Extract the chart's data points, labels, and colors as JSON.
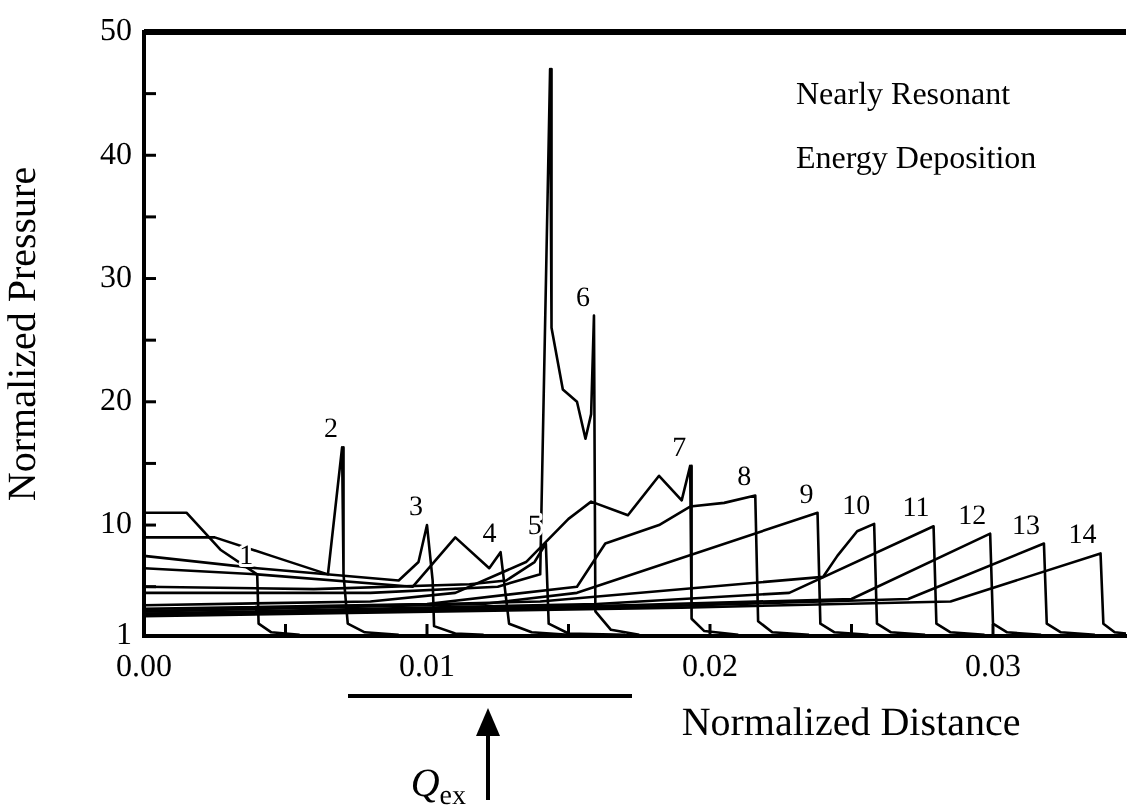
{
  "chart_data": {
    "type": "line",
    "xlabel": "Normalized Distance",
    "ylabel": "Normalized Pressure",
    "xlim": [
      0,
      0.0347
    ],
    "ylim": [
      1,
      50
    ],
    "xticks": [
      {
        "value": 0,
        "label": "0.00"
      },
      {
        "value": 0.005,
        "label": null
      },
      0.01,
      {
        "value": 0.015,
        "label": null
      },
      0.02,
      {
        "value": 0.025,
        "label": null
      },
      0.03
    ],
    "yticks": [
      1,
      {
        "value": 5,
        "label": null
      },
      10,
      {
        "value": 15,
        "label": null
      },
      20,
      {
        "value": 25,
        "label": null
      },
      30,
      {
        "value": 35,
        "label": null
      },
      40,
      {
        "value": 45,
        "label": null
      },
      50
    ],
    "grid": false,
    "legend": false,
    "marker": "none",
    "line_style": "solid",
    "series": [
      {
        "name": "1",
        "color": "#000000",
        "x": [
          0,
          0.0015,
          0.0027,
          0.004,
          0.00405,
          0.0045,
          0.0055
        ],
        "values": [
          11,
          11,
          8,
          6,
          2,
          1.3,
          1.1
        ]
      },
      {
        "name": "2",
        "color": "#000000",
        "x": [
          0,
          0.0025,
          0.0045,
          0.0065,
          0.007,
          0.00705,
          0.0072,
          0.0078,
          0.009
        ],
        "values": [
          9,
          9,
          7.5,
          6,
          16.3,
          6,
          2,
          1.3,
          1.1
        ]
      },
      {
        "name": "3",
        "color": "#000000",
        "x": [
          0,
          0.004,
          0.009,
          0.0097,
          0.01,
          0.0102,
          0.01025,
          0.011,
          0.012
        ],
        "values": [
          7.5,
          6.5,
          5.5,
          7,
          10,
          5.5,
          1.8,
          1.2,
          1.1
        ]
      },
      {
        "name": "4",
        "color": "#000000",
        "x": [
          0,
          0.004,
          0.0095,
          0.011,
          0.0122,
          0.0126,
          0.0129,
          0.0137,
          0.015
        ],
        "values": [
          6.5,
          6,
          5,
          9,
          6.5,
          7.8,
          2,
          1.3,
          1.1
        ]
      },
      {
        "name": "5",
        "color": "#000000",
        "x": [
          0,
          0.006,
          0.0115,
          0.0128,
          0.0138,
          0.0142,
          0.0143,
          0.015,
          0.017
        ],
        "values": [
          5,
          4.8,
          5.2,
          5.5,
          7,
          8.5,
          2,
          1.2,
          1.1
        ]
      },
      {
        "name": "6",
        "color": "#000000",
        "x": [
          0,
          0.008,
          0.0125,
          0.014,
          0.01435,
          0.0144,
          0.0148,
          0.0153,
          0.0156,
          0.0158,
          0.0159,
          0.01595,
          0.0165,
          0.0175
        ],
        "values": [
          4.5,
          4.5,
          5,
          6,
          47,
          26,
          21,
          20,
          17,
          19,
          27,
          3,
          1.5,
          1.1
        ]
      },
      {
        "name": "7",
        "color": "#000000",
        "x": [
          0,
          0.008,
          0.011,
          0.0135,
          0.015,
          0.0158,
          0.0171,
          0.0182,
          0.019,
          0.0193,
          0.01935,
          0.0198,
          0.021
        ],
        "values": [
          3.5,
          3.8,
          4.5,
          7,
          10.5,
          11.9,
          10.8,
          14,
          12,
          14.8,
          2.4,
          1.4,
          1.1
        ]
      },
      {
        "name": "8",
        "color": "#000000",
        "x": [
          0,
          0.01,
          0.0153,
          0.0163,
          0.0182,
          0.0193,
          0.0205,
          0.0216,
          0.0217,
          0.0222,
          0.0235
        ],
        "values": [
          3.2,
          3.6,
          5,
          8.5,
          10,
          11.5,
          11.8,
          12.4,
          2.2,
          1.3,
          1.1
        ]
      },
      {
        "name": "9",
        "color": "#000000",
        "x": [
          0,
          0.012,
          0.0153,
          0.0238,
          0.0239,
          0.0244,
          0.0256
        ],
        "values": [
          3,
          3.6,
          4.5,
          11,
          2,
          1.3,
          1.1
        ]
      },
      {
        "name": "10",
        "color": "#000000",
        "x": [
          0,
          0.014,
          0.024,
          0.0245,
          0.0252,
          0.0258,
          0.0259,
          0.0264,
          0.0276
        ],
        "values": [
          3,
          3.8,
          5.8,
          7.5,
          9.5,
          10.1,
          2,
          1.3,
          1.1
        ]
      },
      {
        "name": "11",
        "color": "#000000",
        "x": [
          0,
          0.016,
          0.0228,
          0.0279,
          0.028,
          0.0285,
          0.0297
        ],
        "values": [
          2.8,
          3.6,
          4.5,
          9.9,
          2,
          1.3,
          1.1
        ]
      },
      {
        "name": "12",
        "color": "#000000",
        "x": [
          0,
          0.017,
          0.025,
          0.0299,
          0.03,
          0.0305,
          0.0317
        ],
        "values": [
          2.8,
          3.5,
          4,
          9.3,
          2,
          1.3,
          1.1
        ]
      },
      {
        "name": "13",
        "color": "#000000",
        "x": [
          0,
          0.018,
          0.027,
          0.0318,
          0.0319,
          0.0324,
          0.0336
        ],
        "values": [
          2.7,
          3.4,
          4,
          8.5,
          2,
          1.3,
          1.1
        ]
      },
      {
        "name": "14",
        "color": "#000000",
        "x": [
          0,
          0.019,
          0.0285,
          0.0338,
          0.0339,
          0.0343,
          0.0347
        ],
        "values": [
          2.6,
          3.3,
          3.8,
          7.7,
          2,
          1.3,
          1.2
        ]
      }
    ],
    "annotations": [
      "Nearly Resonant\nEnergy Deposition",
      "Q$_{ex}$"
    ]
  }
}
